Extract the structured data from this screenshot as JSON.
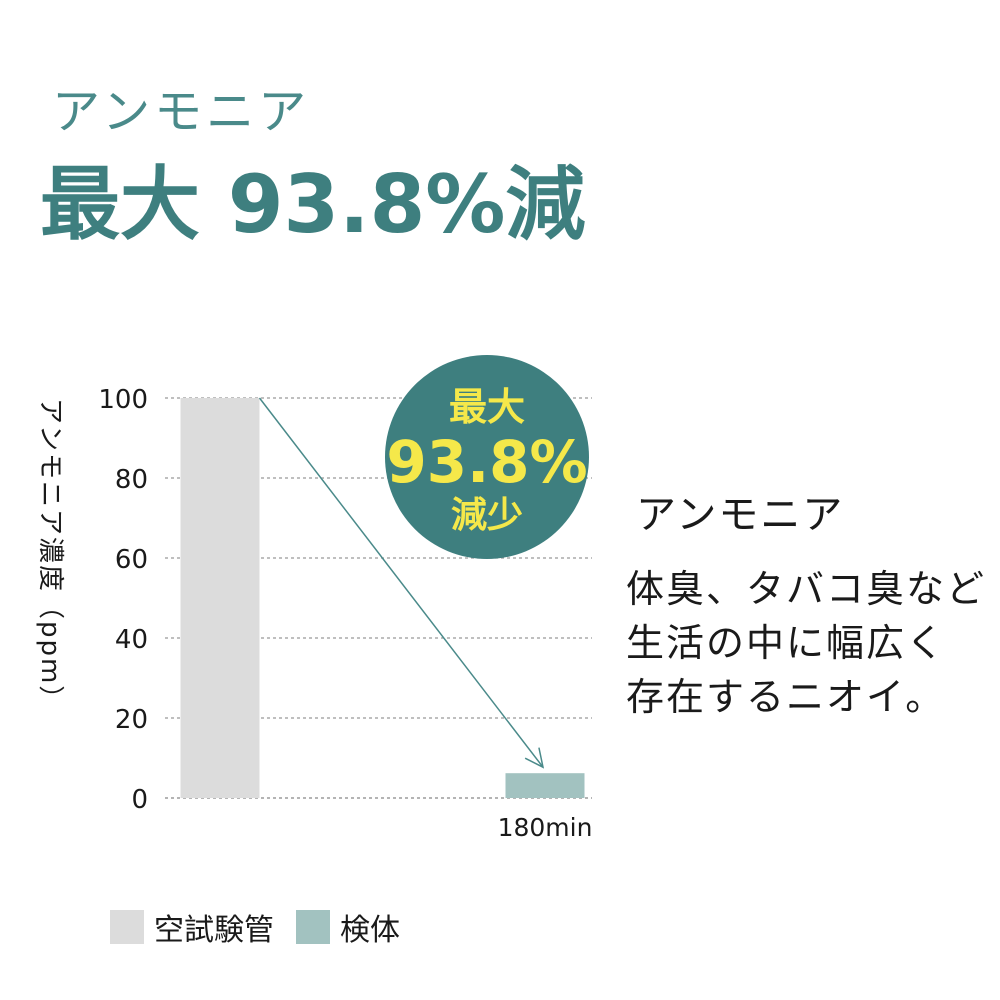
{
  "header": {
    "subtitle": "アンモニア",
    "headline": "最大 93.8%減"
  },
  "badge": {
    "line1": "最大",
    "line2": "93.8%",
    "line3": "減少",
    "bg_color": "#3e7f7f",
    "text_color": "#f5e84a"
  },
  "description": {
    "title": "アンモニア",
    "lines": [
      "体臭、タバコ臭など",
      "生活の中に幅広く",
      "存在するニオイ。"
    ]
  },
  "chart_data": {
    "type": "bar",
    "categories": [
      "",
      "180min"
    ],
    "series": [
      {
        "name": "空試験管",
        "values": [
          100,
          null
        ],
        "color": "#dcdcdc"
      },
      {
        "name": "検体",
        "values": [
          null,
          6.2
        ],
        "color": "#a2c2c0"
      }
    ],
    "ylabel": "アンモニア濃度（ppm）",
    "xlabel": "",
    "ylim": [
      0,
      100
    ],
    "yticks": [
      0,
      20,
      40,
      60,
      80,
      100
    ],
    "grid": true,
    "arrow_color": "#4a8a8a",
    "legend_position": "bottom-left"
  }
}
